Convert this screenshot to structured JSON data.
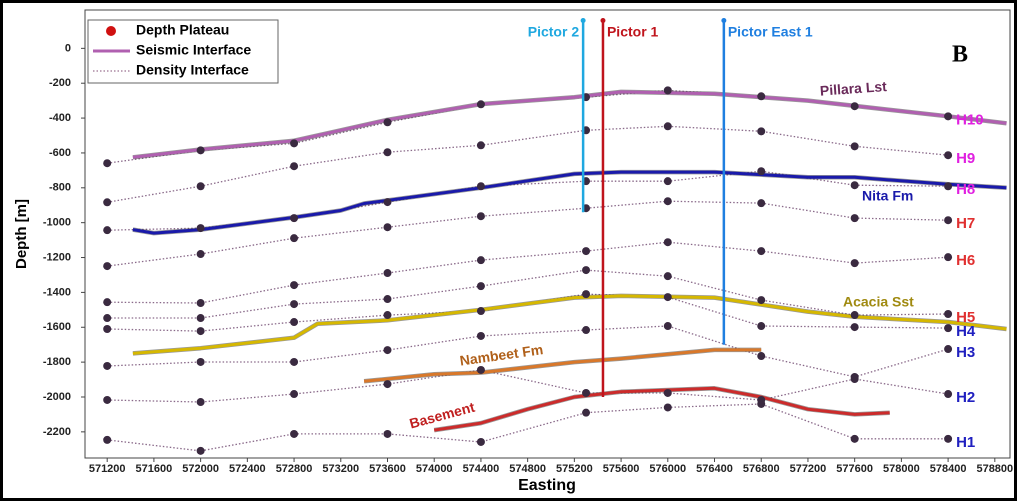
{
  "chart_data": {
    "type": "line",
    "panel_label": "B",
    "xlabel": "Easting",
    "ylabel": "Depth [m]",
    "xlim": [
      571010,
      578930
    ],
    "ylim": [
      -2350,
      220
    ],
    "xticks": [
      571200,
      571600,
      572000,
      572400,
      572800,
      573200,
      573600,
      574000,
      574400,
      574800,
      575200,
      575600,
      576000,
      576400,
      576800,
      577200,
      577600,
      578000,
      578400,
      578800
    ],
    "yticks": [
      0,
      -200,
      -400,
      -600,
      -800,
      -1000,
      -1200,
      -1400,
      -1600,
      -1800,
      -2000,
      -2200
    ],
    "grid": false,
    "legend": {
      "position": "upper left",
      "entries": [
        {
          "label": "Depth Plateau",
          "color": "#d01010"
        },
        {
          "label": "Seismic Interface",
          "color": "#b060b0"
        },
        {
          "label": "Density Interface",
          "color": "#9a7090"
        }
      ]
    },
    "dot_color": "#3a2a40",
    "density_line_color": "#8a6a8a",
    "x": [
      571200,
      572000,
      572800,
      573600,
      574400,
      575300,
      576000,
      576800,
      577600,
      578400
    ],
    "horizons": [
      {
        "name": "H10",
        "color": "#e020e0",
        "values": [
          -659,
          -585,
          -545,
          -424,
          -321,
          -280,
          -241,
          -275,
          -332,
          -390
        ]
      },
      {
        "name": "H9",
        "color": "#e020e0",
        "values": [
          -883,
          -791,
          -676,
          -596,
          -556,
          -470,
          -447,
          -476,
          -562,
          -613
        ]
      },
      {
        "name": "H8",
        "color": "#e020e0",
        "values": [
          -1043,
          -1031,
          -974,
          -882,
          -791,
          -762,
          -762,
          -705,
          -785,
          -791
        ]
      },
      {
        "name": "H7",
        "color": "#e03030",
        "values": [
          -1249,
          -1180,
          -1089,
          -1026,
          -963,
          -917,
          -877,
          -888,
          -974,
          -986
        ]
      },
      {
        "name": "H6",
        "color": "#e03030",
        "values": [
          -1456,
          -1461,
          -1358,
          -1289,
          -1215,
          -1163,
          -1112,
          -1163,
          -1232,
          -1198
        ]
      },
      {
        "name": "H5",
        "color": "#e03030",
        "values": [
          -1547,
          -1547,
          -1467,
          -1438,
          -1364,
          -1272,
          -1307,
          -1444,
          -1530,
          -1524
        ]
      },
      {
        "name": "H4",
        "color": "#2020c0",
        "values": [
          -1610,
          -1622,
          -1570,
          -1530,
          -1507,
          -1410,
          -1427,
          -1593,
          -1599,
          -1605
        ]
      },
      {
        "name": "H3",
        "color": "#2020c0",
        "values": [
          -1822,
          -1799,
          -1799,
          -1731,
          -1650,
          -1616,
          -1593,
          -1765,
          -1885,
          -1725
        ]
      },
      {
        "name": "H2",
        "color": "#2020c0",
        "values": [
          -2017,
          -2029,
          -1983,
          -1926,
          -1845,
          -1977,
          -1977,
          -2017,
          -1897,
          -1983
        ]
      },
      {
        "name": "H1",
        "color": "#2020c0",
        "values": [
          -2246,
          -2309,
          -2212,
          -2212,
          -2258,
          -2090,
          -2060,
          -2040,
          -2240,
          -2240
        ]
      }
    ],
    "interfaces": [
      {
        "name": "Pillara Lst",
        "color": "#b060b0",
        "label_color": "#6a2a5a",
        "x": [
          571420,
          572000,
          572800,
          573200,
          573600,
          574400,
          575200,
          575600,
          576400,
          577200,
          577600,
          578400,
          578900
        ],
        "values": [
          -625,
          -580,
          -530,
          -470,
          -410,
          -320,
          -280,
          -250,
          -260,
          -300,
          -330,
          -390,
          -430
        ]
      },
      {
        "name": "Nita Fm",
        "color": "#1a1aaa",
        "label_color": "#1a1aaa",
        "x": [
          571420,
          571600,
          572000,
          572800,
          573200,
          573400,
          574400,
          575200,
          575600,
          576400,
          577200,
          577600,
          578400,
          578900
        ],
        "values": [
          -1040,
          -1060,
          -1040,
          -970,
          -930,
          -890,
          -800,
          -720,
          -710,
          -710,
          -740,
          -740,
          -780,
          -800
        ]
      },
      {
        "name": "Acacia Sst",
        "color": "#d6b800",
        "label_color": "#a08a10",
        "x": [
          571420,
          572000,
          572800,
          573000,
          573600,
          574400,
          575200,
          575600,
          576400,
          577200,
          577600,
          578400,
          578900
        ],
        "values": [
          -1750,
          -1720,
          -1660,
          -1580,
          -1560,
          -1500,
          -1430,
          -1420,
          -1430,
          -1510,
          -1540,
          -1570,
          -1610
        ]
      },
      {
        "name": "Nambeet Fm",
        "color": "#d9782a",
        "label_color": "#b0601a",
        "x": [
          573400,
          574000,
          574400,
          575200,
          575600,
          576400,
          576800
        ],
        "values": [
          -1910,
          -1870,
          -1860,
          -1800,
          -1780,
          -1730,
          -1730
        ]
      },
      {
        "name": "Basement",
        "color": "#cc2b2b",
        "label_color": "#c02020",
        "x": [
          574000,
          574400,
          574800,
          575200,
          575600,
          576400,
          576800,
          577200,
          577600,
          577900
        ],
        "values": [
          -2190,
          -2150,
          -2070,
          -2000,
          -1970,
          -1950,
          -2000,
          -2070,
          -2100,
          -2090
        ]
      }
    ],
    "wells": [
      {
        "name": "Pictor 2",
        "color": "#1fa8e0",
        "x": 575275,
        "top": 160,
        "bottom": -940
      },
      {
        "name": "Pictor 1",
        "color": "#c0141c",
        "x": 575445,
        "top": 160,
        "bottom": -2000
      },
      {
        "name": "Pictor East 1",
        "color": "#1f7fe0",
        "x": 576480,
        "top": 160,
        "bottom": -1700
      }
    ]
  }
}
